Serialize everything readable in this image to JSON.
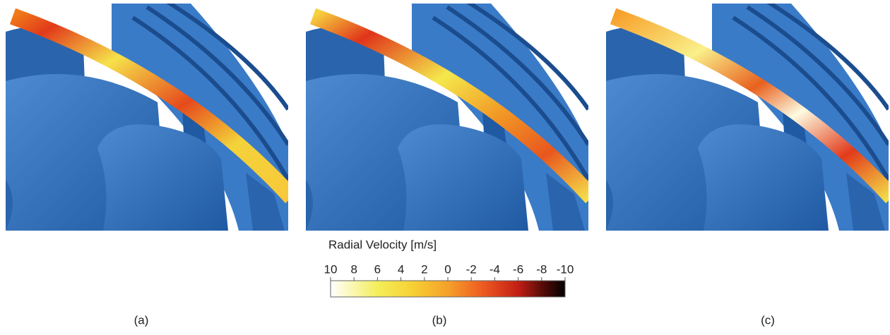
{
  "figure": {
    "panels": [
      {
        "label": "(a)"
      },
      {
        "label": "(b)"
      },
      {
        "label": "(c)"
      }
    ],
    "colorbar": {
      "title": "Radial Velocity [m/s]",
      "lim": [
        10,
        -10
      ],
      "ticks": [
        10,
        8,
        6,
        4,
        2,
        0,
        -2,
        -4,
        -6,
        -8,
        -10
      ]
    }
  }
}
